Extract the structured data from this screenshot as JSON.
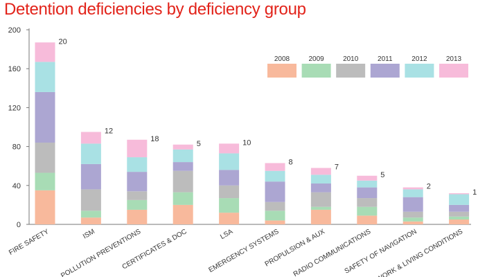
{
  "chart_data": {
    "type": "bar",
    "stacked": true,
    "title": "Detention deficiencies by deficiency group",
    "title_color": "#e2231a",
    "xlabel": "",
    "ylabel": "",
    "ylim": [
      0,
      200
    ],
    "yticks": [
      0,
      40,
      80,
      120,
      160,
      200
    ],
    "grid": false,
    "legend_position": "top-right",
    "categories": [
      "FIRE SAFETY",
      "ISM",
      "POLLUTION PREVENTIONS",
      "CERTIFICATES & DOC",
      "LSA",
      "EMERGENCY SYSTEMS",
      "PROPULSION & AUX",
      "RADIO COMMUNICATIONS",
      "SAFETY OF NAVIGATION",
      "WORK & LIVING CONDITIONS"
    ],
    "series": [
      {
        "name": "2008",
        "color": "#f8b99c",
        "values": [
          35,
          7,
          15,
          20,
          12,
          4,
          15,
          9,
          3,
          5
        ]
      },
      {
        "name": "2009",
        "color": "#a8dcb5",
        "values": [
          18,
          7,
          10,
          13,
          15,
          10,
          3,
          9,
          4,
          3
        ]
      },
      {
        "name": "2010",
        "color": "#bcbcbc",
        "values": [
          31,
          22,
          9,
          22,
          13,
          9,
          15,
          9,
          6,
          5
        ]
      },
      {
        "name": "2011",
        "color": "#aca6d2",
        "values": [
          52,
          26,
          20,
          9,
          16,
          21,
          9,
          11,
          15,
          7
        ]
      },
      {
        "name": "2012",
        "color": "#a9e1e4",
        "values": [
          31,
          21,
          15,
          13,
          17,
          11,
          9,
          7,
          8,
          11
        ]
      },
      {
        "name": "2013",
        "color": "#f7bbda",
        "values": [
          20,
          12,
          18,
          5,
          10,
          8,
          7,
          5,
          2,
          1
        ]
      }
    ],
    "data_labels": [
      20,
      12,
      18,
      5,
      10,
      8,
      7,
      5,
      2,
      1
    ]
  }
}
